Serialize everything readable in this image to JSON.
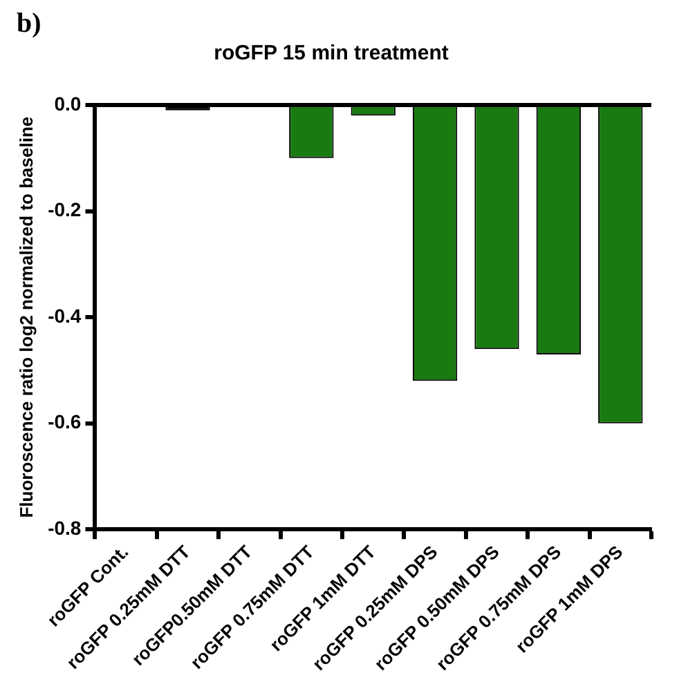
{
  "chart_data": {
    "type": "bar",
    "title": "roGFP 15 min treatment",
    "ylabel": "Fluoroscence ratio log2 normalized to baseline",
    "categories": [
      "roGFP Cont.",
      "roGFP 0.25mM DTT",
      "roGFP0.50mM DTT",
      "roGFP 0.75mM DTT",
      "roGFP 1mM DTT",
      "roGFP 0.25mM DPS",
      "roGFP 0.50mM DPS",
      "roGFP 0.75mM DPS",
      "roGFP 1mM DPS"
    ],
    "values": [
      0,
      -0.01,
      0,
      -0.1,
      -0.02,
      -0.52,
      -0.46,
      -0.47,
      -0.6
    ],
    "colors": [
      "#1a7a12",
      "#000000",
      "#1a7a12",
      "#1a7a12",
      "#1a7a12",
      "#1a7a12",
      "#1a7a12",
      "#1a7a12",
      "#1a7a12"
    ],
    "ylim": [
      -0.8,
      0
    ],
    "yticks": [
      {
        "value": -0.8,
        "label": "-0.8"
      },
      {
        "value": -0.6,
        "label": "-0.6"
      },
      {
        "value": -0.4,
        "label": "-0.4"
      },
      {
        "value": -0.2,
        "label": "-0.2"
      },
      {
        "value": 0,
        "label": "0.0"
      }
    ],
    "ref_lines": [
      {
        "axis": "y",
        "value": 0
      }
    ],
    "annotations": [
      "b)"
    ],
    "grid": false,
    "legend": false
  }
}
